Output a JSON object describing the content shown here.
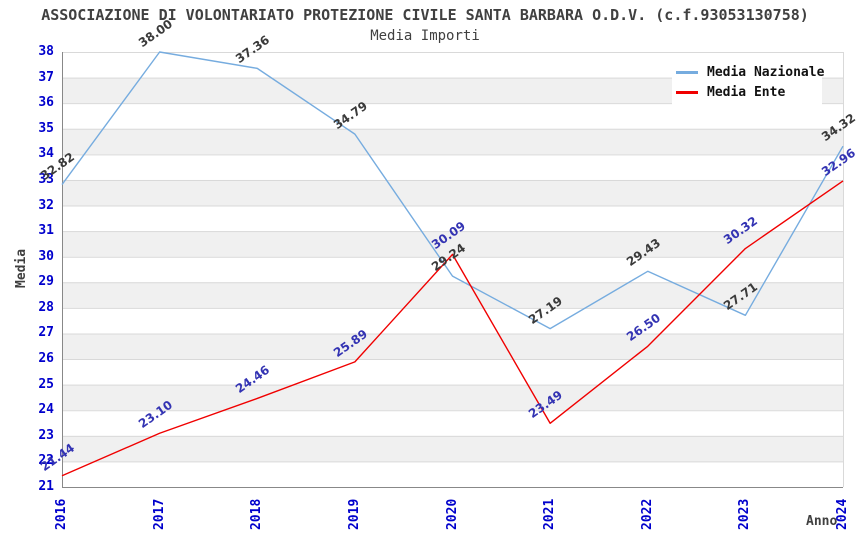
{
  "title": "ASSOCIAZIONE DI VOLONTARIATO PROTEZIONE CIVILE SANTA BARBARA O.D.V. (c.f.93053130758)",
  "subtitle": "Media Importi",
  "axes": {
    "x_label": "Anno",
    "y_label": "Media"
  },
  "legend": {
    "position": "top-right",
    "items": [
      {
        "label": "Media Nazionale",
        "color": "#76ACDF"
      },
      {
        "label": "Media Ente",
        "color": "#F00000"
      }
    ]
  },
  "colors": {
    "tick_label": "#0000CC",
    "title_text": "#404040",
    "band": "#F0F0F0",
    "gridline": "#D9D9D9",
    "axis": "#888888",
    "background": "#FFFFFF"
  },
  "chart_data": {
    "type": "line",
    "title": "Media Importi",
    "xlabel": "Anno",
    "ylabel": "Media",
    "x": [
      2016,
      2017,
      2018,
      2019,
      2020,
      2021,
      2022,
      2023,
      2024
    ],
    "series": [
      {
        "name": "Media Nazionale",
        "color": "#76ACDF",
        "label_color": "#3A3A3A",
        "values": [
          32.82,
          38.0,
          37.36,
          34.79,
          29.24,
          27.19,
          29.43,
          27.71,
          34.32
        ]
      },
      {
        "name": "Media Ente",
        "color": "#F00000",
        "label_color": "#3333B3",
        "values": [
          21.44,
          23.1,
          24.46,
          25.89,
          30.09,
          23.49,
          26.5,
          30.32,
          32.96
        ]
      }
    ],
    "ylim": [
      21,
      38
    ],
    "ytick_step": 1,
    "grid": "horizontal-bands",
    "legend_position": "top-right",
    "point_label_decimals": 2
  }
}
